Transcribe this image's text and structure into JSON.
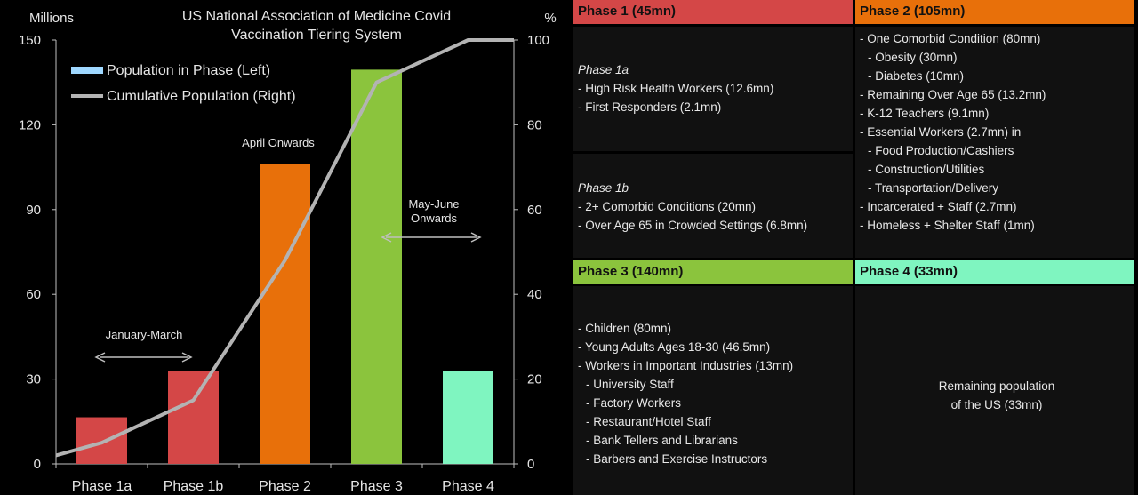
{
  "chart_data": {
    "type": "bar",
    "title": "US National  Association of Medicine Covid Vaccination Tiering System",
    "title_lines": [
      "US National  Association of Medicine Covid",
      "Vaccination Tiering System"
    ],
    "left_axis_label": "Millions",
    "right_axis_label": "%",
    "categories": [
      "Phase 1a",
      "Phase 1b",
      "Phase 2",
      "Phase 3",
      "Phase 4"
    ],
    "left_ticks": [
      "0",
      "30",
      "60",
      "90",
      "120",
      "150"
    ],
    "right_ticks": [
      "0",
      "20",
      "40",
      "60",
      "80",
      "100"
    ],
    "ylim_left": [
      0,
      150
    ],
    "ylim_right": [
      0,
      100
    ],
    "series": [
      {
        "name": "Population in Phase (Left)",
        "type": "bar",
        "axis": "left",
        "values": [
          16.5,
          33,
          106,
          139.5,
          33
        ],
        "colors": [
          "#d44747",
          "#d44747",
          "#e8700a",
          "#8bc43d",
          "#7ff5c0"
        ]
      },
      {
        "name": "Cumulative Population (Right)",
        "type": "line",
        "axis": "right",
        "color": "#b3b3b3",
        "x": [
          "start",
          "Phase 1a",
          "Phase 1b",
          "Phase 2",
          "Phase 3",
          "Phase 4",
          "end"
        ],
        "values": [
          2,
          5,
          15,
          48,
          90,
          100,
          100
        ]
      }
    ],
    "legend_position": "top-left",
    "annotations": [
      {
        "text_lines": [
          "January-March"
        ],
        "arrow": "double"
      },
      {
        "text_lines": [
          "April Onwards"
        ],
        "arrow": "none"
      },
      {
        "text_lines": [
          "May-June",
          "Onwards"
        ],
        "arrow": "right"
      }
    ]
  },
  "table": {
    "phase1": {
      "header": "Phase 1 (45mn)",
      "color": "#d44747",
      "sub_1a": {
        "title": "Phase 1a",
        "items": [
          "- High Risk Health Workers (12.6mn)",
          "- First Responders (2.1mn)"
        ]
      },
      "sub_1b": {
        "title": "Phase 1b",
        "items": [
          "- 2+ Comorbid Conditions (20mn)",
          "- Over Age 65 in Crowded Settings (6.8mn)"
        ]
      }
    },
    "phase2": {
      "header": "Phase 2 (105mn)",
      "color": "#e8700a",
      "items": [
        "- One Comorbid Condition (80mn)",
        "   - Obesity (30mn)",
        "   - Diabetes (10mn)",
        "- Remaining Over Age 65 (13.2mn)",
        "- K-12 Teachers (9.1mn)",
        "- Essential Workers (2.7mn) in",
        "   - Food Production/Cashiers",
        "   - Construction/Utilities",
        "   - Transportation/Delivery",
        "- Incarcerated + Staff (2.7mn)",
        "- Homeless + Shelter Staff (1mn)"
      ]
    },
    "phase3": {
      "header": "Phase 3 (140mn)",
      "color": "#8bc43d",
      "items": [
        "- Children (80mn)",
        "- Young Adults Ages 18-30 (46.5mn)",
        "- Workers in Important Industries (13mn)",
        "   - University Staff",
        "   - Factory Workers",
        "   - Restaurant/Hotel Staff",
        "   - Bank Tellers and Librarians",
        "   - Barbers and Exercise Instructors"
      ]
    },
    "phase4": {
      "header": "Phase 4 (33mn)",
      "color": "#7ff5c0",
      "text_lines": [
        "Remaining population",
        "of the US (33mn)"
      ]
    }
  }
}
